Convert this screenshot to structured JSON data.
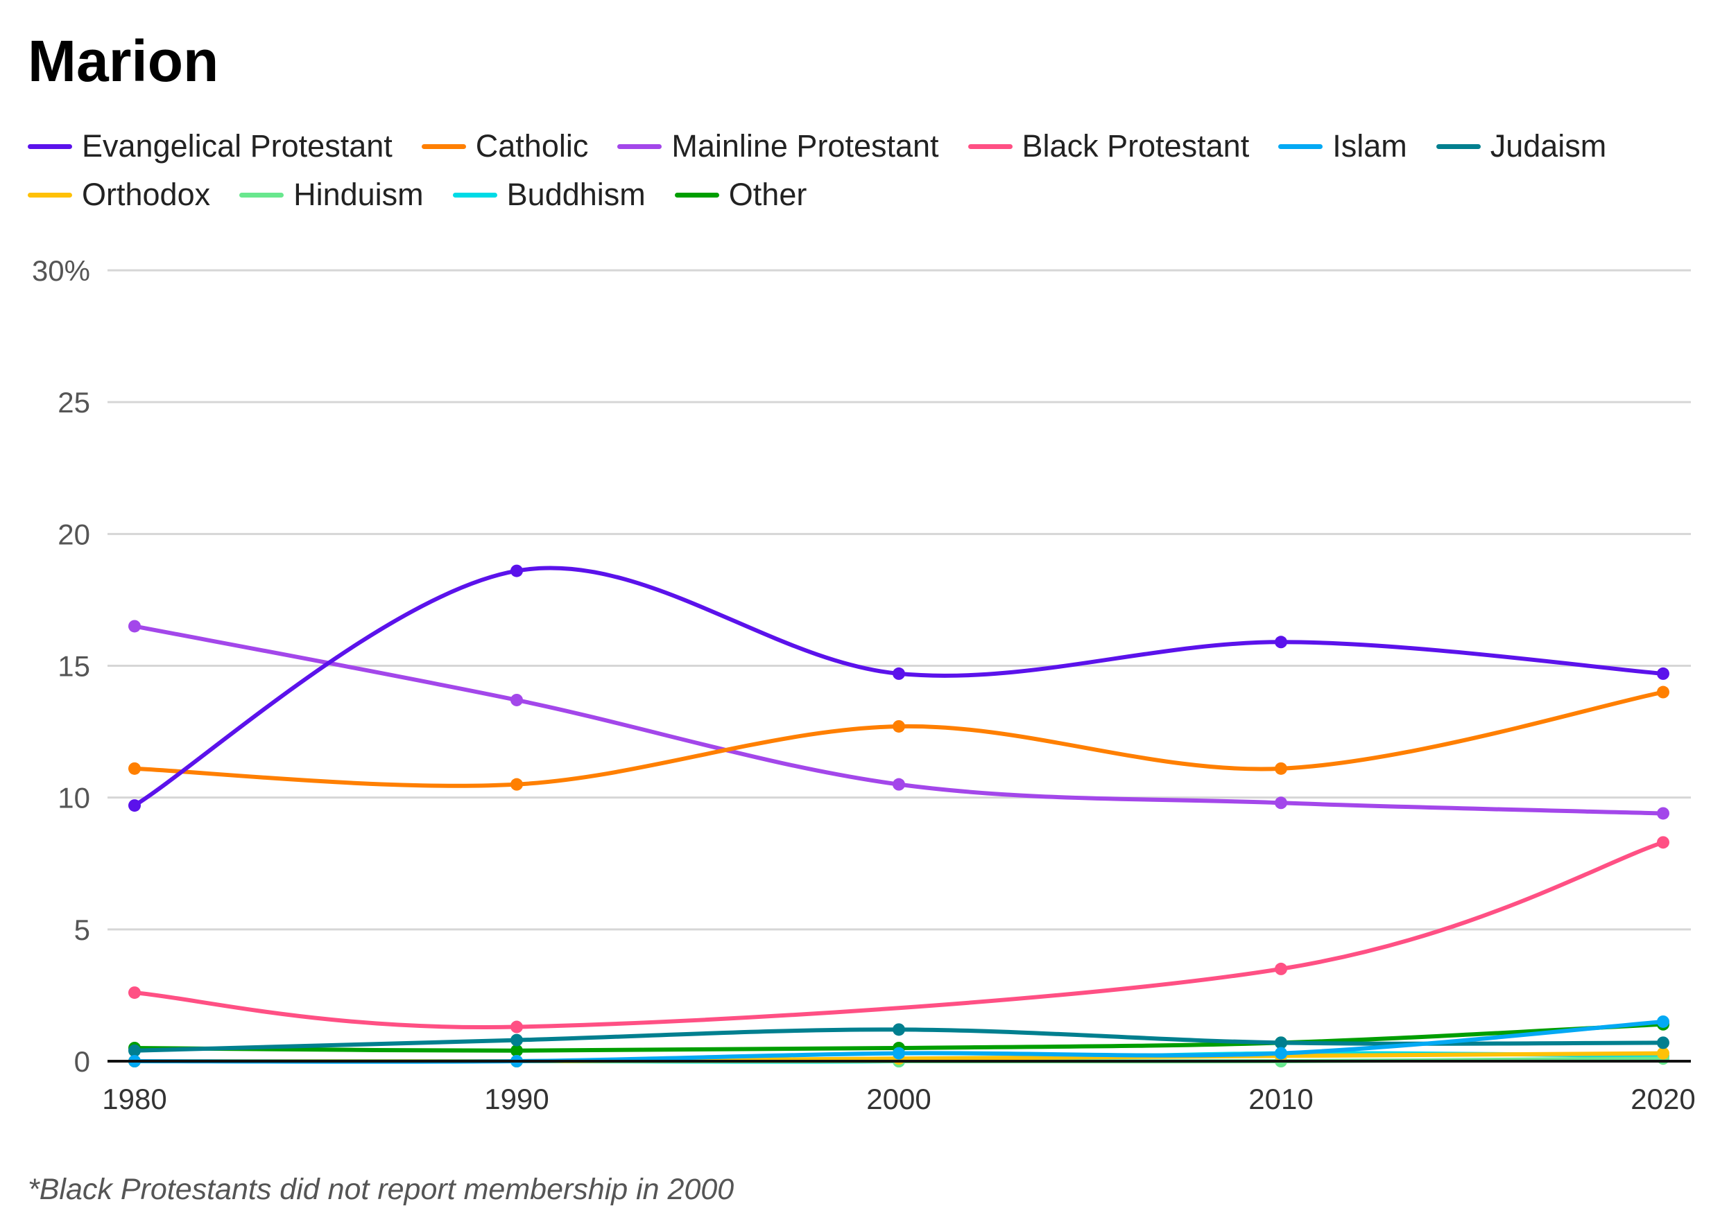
{
  "chart_data": {
    "type": "line",
    "title": "Marion",
    "x": [
      1980,
      1990,
      2000,
      2010,
      2020
    ],
    "ylim": [
      0,
      30
    ],
    "yticks": [
      0,
      5,
      10,
      15,
      20,
      25,
      30
    ],
    "ytick_labels": [
      "0",
      "5",
      "10",
      "15",
      "20",
      "25",
      "30%"
    ],
    "xtick_labels": [
      "1980",
      "1990",
      "2000",
      "2010",
      "2020"
    ],
    "grid": true,
    "legend": "top",
    "series": [
      {
        "name": "Evangelical Protestant",
        "color": "#5b12eb",
        "values": [
          9.7,
          18.6,
          14.7,
          15.9,
          14.7
        ]
      },
      {
        "name": "Catholic",
        "color": "#ff7f00",
        "values": [
          11.1,
          10.5,
          12.7,
          11.1,
          14.0
        ]
      },
      {
        "name": "Mainline Protestant",
        "color": "#a347ea",
        "values": [
          16.5,
          13.7,
          10.5,
          9.8,
          9.4
        ]
      },
      {
        "name": "Black Protestant",
        "color": "#ff5084",
        "values": [
          2.6,
          1.3,
          null,
          3.5,
          8.3
        ]
      },
      {
        "name": "Islam",
        "color": "#03a9f4",
        "values": [
          0,
          0,
          0.3,
          0.3,
          1.5
        ]
      },
      {
        "name": "Judaism",
        "color": "#007f8f",
        "values": [
          0.4,
          0.8,
          1.2,
          0.7,
          0.7
        ]
      },
      {
        "name": "Orthodox",
        "color": "#ffc107",
        "values": [
          0,
          0,
          0.1,
          0.2,
          0.3
        ]
      },
      {
        "name": "Hinduism",
        "color": "#69e78e",
        "values": [
          0,
          0,
          0,
          0,
          0.1
        ]
      },
      {
        "name": "Buddhism",
        "color": "#00dbe6",
        "values": [
          0,
          0,
          0,
          0.3,
          0.2
        ]
      },
      {
        "name": "Other",
        "color": "#009e00",
        "values": [
          0.5,
          0.4,
          0.5,
          0.7,
          1.4
        ]
      }
    ],
    "footnote": "*Black Protestants did not report membership in 2000"
  }
}
